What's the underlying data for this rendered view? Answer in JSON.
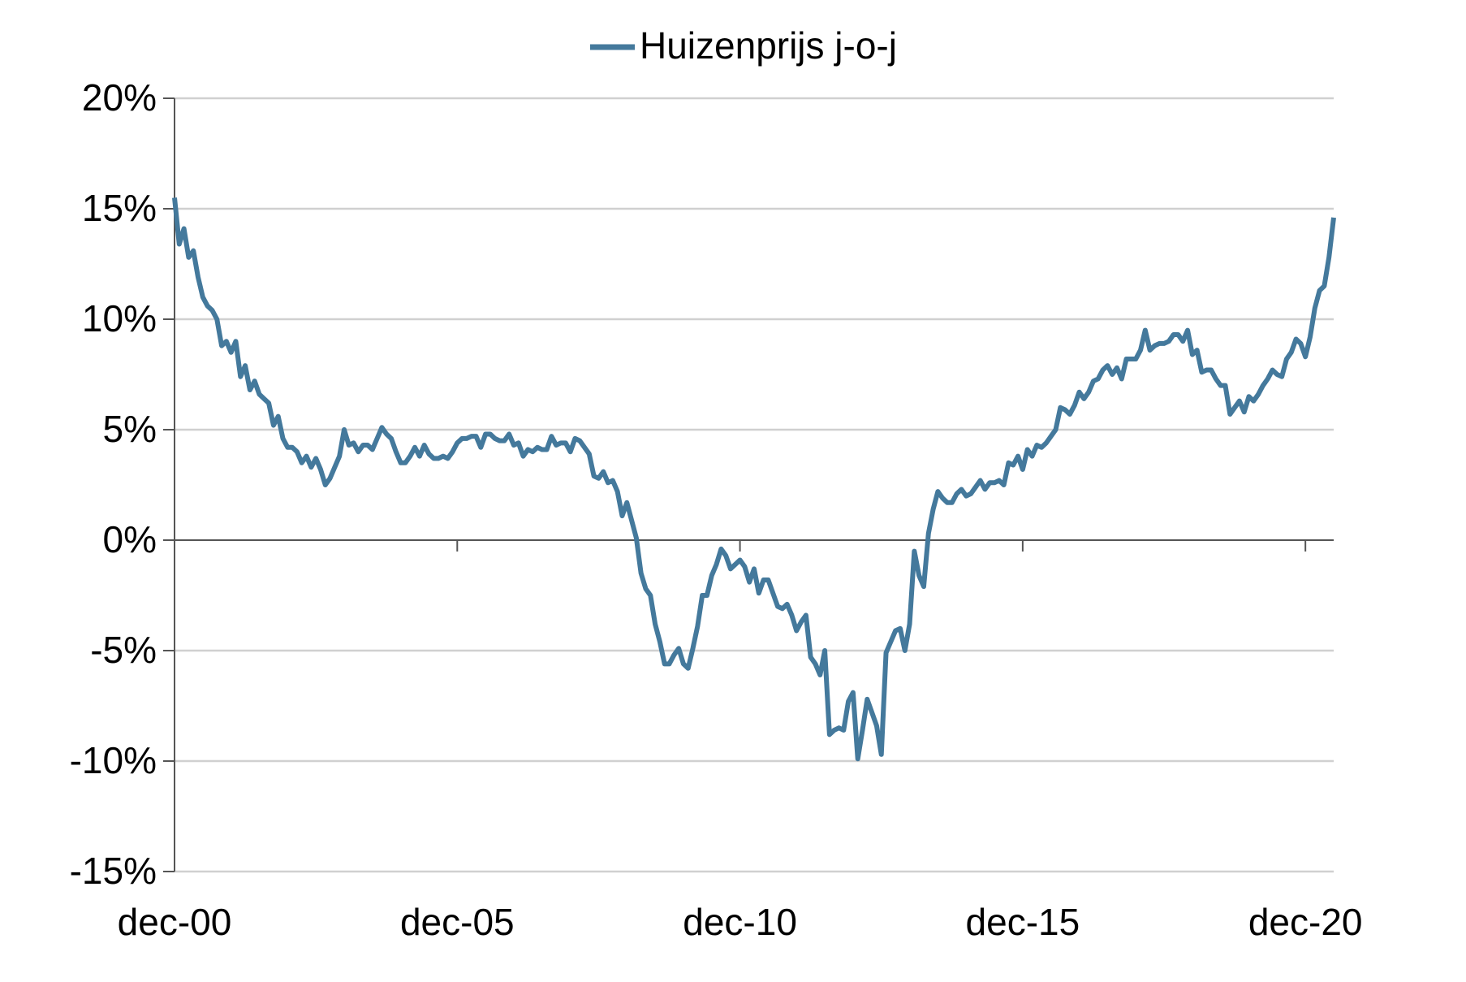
{
  "chart_data": {
    "type": "line",
    "categories": [
      "dec-00",
      null,
      null,
      null,
      null,
      null,
      null,
      null,
      null,
      null,
      null,
      null,
      null,
      null,
      null,
      null,
      null,
      null,
      null,
      null,
      null,
      null,
      null,
      null,
      null,
      null,
      null,
      null,
      null,
      null,
      null,
      null,
      null,
      null,
      null,
      null,
      null,
      null,
      null,
      null,
      null,
      null,
      null,
      null,
      null,
      null,
      null,
      null,
      null,
      null,
      null,
      null,
      null,
      null,
      null,
      null,
      null,
      null,
      null,
      null,
      "dec-05",
      null,
      null,
      null,
      null,
      null,
      null,
      null,
      null,
      null,
      null,
      null,
      null,
      null,
      null,
      null,
      null,
      null,
      null,
      null,
      null,
      null,
      null,
      null,
      null,
      null,
      null,
      null,
      null,
      null,
      null,
      null,
      null,
      null,
      null,
      null,
      null,
      null,
      null,
      null,
      null,
      null,
      null,
      null,
      null,
      null,
      null,
      null,
      null,
      null,
      null,
      null,
      null,
      null,
      null,
      null,
      null,
      null,
      null,
      null,
      "dec-10",
      null,
      null,
      null,
      null,
      null,
      null,
      null,
      null,
      null,
      null,
      null,
      null,
      null,
      null,
      null,
      null,
      null,
      null,
      null,
      null,
      null,
      null,
      null,
      null,
      null,
      null,
      null,
      null,
      null,
      null,
      null,
      null,
      null,
      null,
      null,
      null,
      null,
      null,
      null,
      null,
      null,
      null,
      null,
      null,
      null,
      null,
      null,
      null,
      null,
      null,
      null,
      null,
      null,
      null,
      null,
      null,
      null,
      null,
      null,
      "dec-15",
      null,
      null,
      null,
      null,
      null,
      null,
      null,
      null,
      null,
      null,
      null,
      null,
      null,
      null,
      null,
      null,
      null,
      null,
      null,
      null,
      null,
      null,
      null,
      null,
      null,
      null,
      null,
      null,
      null,
      null,
      null,
      null,
      null,
      null,
      null,
      null,
      null,
      null,
      null,
      null,
      null,
      null,
      null,
      null,
      null,
      null,
      null,
      null,
      null,
      null,
      null,
      null,
      null,
      null,
      null,
      null,
      null,
      null,
      null,
      "dec-20",
      null,
      null,
      null,
      null,
      null,
      null
    ],
    "series": [
      {
        "name": "Huizenprijs j-o-j",
        "color": "#44799c",
        "values": [
          15.5,
          13.4,
          14.1,
          12.8,
          13.1,
          11.9,
          11.0,
          10.6,
          10.4,
          10.0,
          8.8,
          9.0,
          8.5,
          9.0,
          7.4,
          7.9,
          6.8,
          7.2,
          6.6,
          6.4,
          6.2,
          5.2,
          5.6,
          4.6,
          4.2,
          4.2,
          4.0,
          3.5,
          3.8,
          3.3,
          3.7,
          3.2,
          2.5,
          2.8,
          3.3,
          3.8,
          5.0,
          4.3,
          4.4,
          4.0,
          4.3,
          4.3,
          4.1,
          4.6,
          5.1,
          4.8,
          4.6,
          4.0,
          3.5,
          3.5,
          3.8,
          4.2,
          3.8,
          4.3,
          3.9,
          3.7,
          3.7,
          3.8,
          3.7,
          4.0,
          4.4,
          4.6,
          4.6,
          4.7,
          4.7,
          4.2,
          4.8,
          4.8,
          4.6,
          4.5,
          4.5,
          4.8,
          4.3,
          4.4,
          3.8,
          4.1,
          4.0,
          4.2,
          4.1,
          4.1,
          4.7,
          4.3,
          4.4,
          4.4,
          4.0,
          4.6,
          4.5,
          4.2,
          3.9,
          2.9,
          2.8,
          3.1,
          2.6,
          2.7,
          2.2,
          1.1,
          1.7,
          0.9,
          0.1,
          -1.5,
          -2.2,
          -2.5,
          -3.8,
          -4.6,
          -5.6,
          -5.6,
          -5.2,
          -4.9,
          -5.6,
          -5.8,
          -4.9,
          -3.9,
          -2.5,
          -2.5,
          -1.6,
          -1.1,
          -0.4,
          -0.7,
          -1.3,
          -1.1,
          -0.9,
          -1.2,
          -1.9,
          -1.3,
          -2.4,
          -1.8,
          -1.8,
          -2.4,
          -3.0,
          -3.1,
          -2.9,
          -3.4,
          -4.1,
          -3.7,
          -3.4,
          -5.3,
          -5.6,
          -6.1,
          -5.0,
          -8.8,
          -8.6,
          -8.5,
          -8.6,
          -7.3,
          -6.9,
          -9.9,
          -8.6,
          -7.2,
          -7.8,
          -8.4,
          -9.7,
          -5.1,
          -4.6,
          -4.1,
          -4.0,
          -5.0,
          -3.8,
          -0.5,
          -1.6,
          -2.1,
          0.3,
          1.4,
          2.2,
          1.9,
          1.7,
          1.7,
          2.1,
          2.3,
          2.0,
          2.1,
          2.4,
          2.7,
          2.3,
          2.6,
          2.6,
          2.7,
          2.5,
          3.5,
          3.4,
          3.8,
          3.2,
          4.1,
          3.8,
          4.3,
          4.2,
          4.4,
          4.7,
          5.0,
          6.0,
          5.9,
          5.7,
          6.1,
          6.7,
          6.4,
          6.7,
          7.2,
          7.3,
          7.7,
          7.9,
          7.5,
          7.8,
          7.3,
          8.2,
          8.2,
          8.2,
          8.6,
          9.5,
          8.6,
          8.8,
          8.9,
          8.9,
          9.0,
          9.3,
          9.3,
          9.0,
          9.5,
          8.4,
          8.6,
          7.6,
          7.7,
          7.7,
          7.3,
          7.0,
          7.0,
          5.7,
          6.0,
          6.3,
          5.8,
          6.5,
          6.3,
          6.6,
          7.0,
          7.3,
          7.7,
          7.5,
          7.4,
          8.2,
          8.5,
          9.1,
          8.9,
          8.3,
          9.2,
          10.5,
          11.3,
          11.5,
          12.8,
          14.6
        ]
      }
    ],
    "ylim": [
      -15,
      20
    ],
    "yticks": [
      {
        "value": -15,
        "label": "-15%"
      },
      {
        "value": -10,
        "label": "-10%"
      },
      {
        "value": -5,
        "label": "-5%"
      },
      {
        "value": 0,
        "label": "0%"
      },
      {
        "value": 5,
        "label": "5%"
      },
      {
        "value": 10,
        "label": "10%"
      },
      {
        "value": 15,
        "label": "15%"
      },
      {
        "value": 20,
        "label": "20%"
      }
    ],
    "grid": true,
    "legend": "top"
  }
}
